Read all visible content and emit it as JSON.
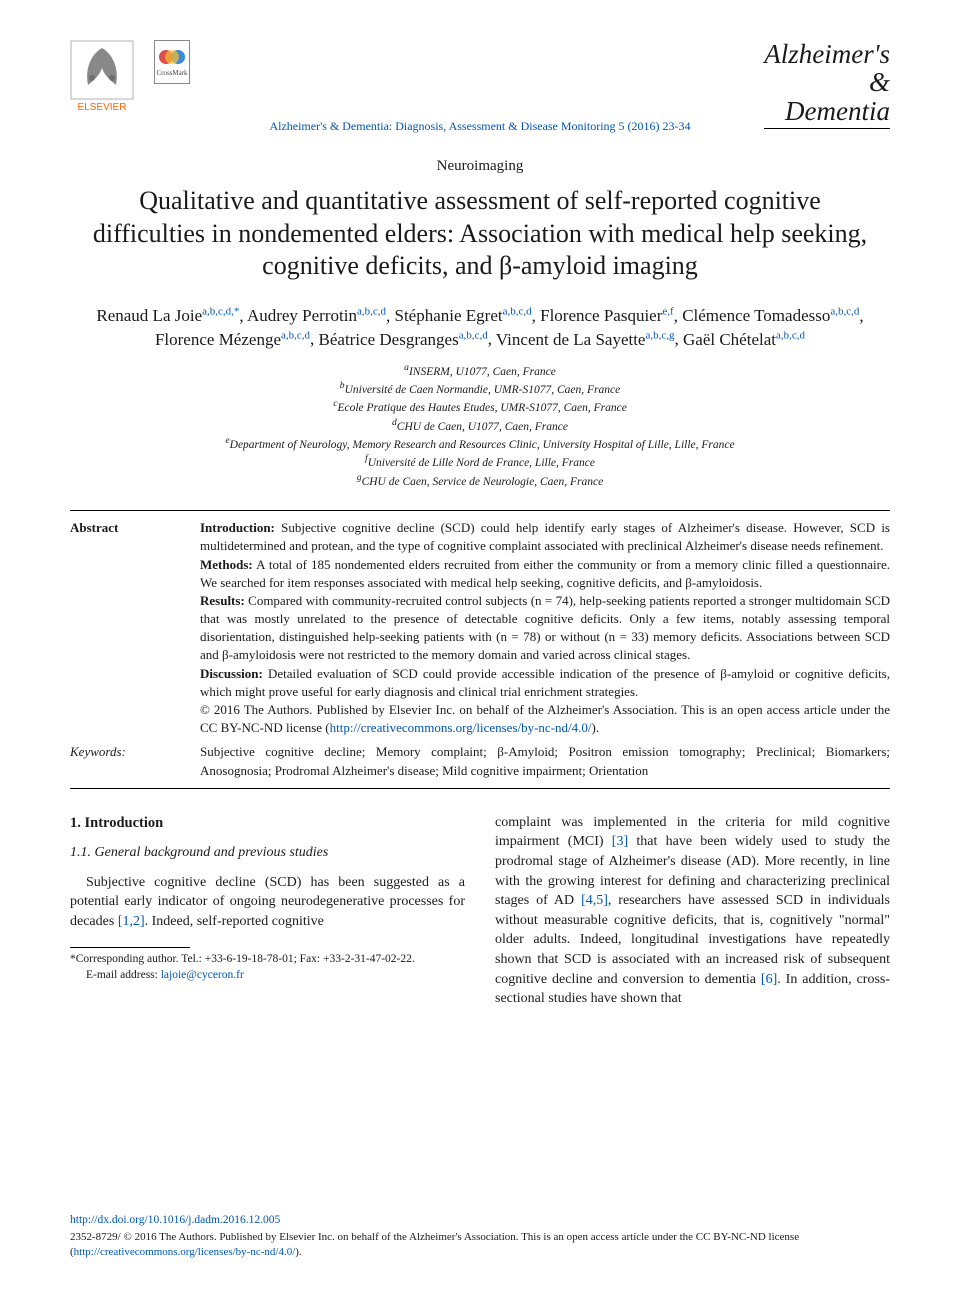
{
  "header": {
    "publisher_name": "ELSEVIER",
    "crossmark_label": "CrossMark",
    "journal_ref": "Alzheimer's & Dementia: Diagnosis, Assessment & Disease Monitoring 5 (2016) 23-34",
    "journal_logo_line1": "Alzheimer's",
    "journal_logo_line2": "&",
    "journal_logo_line3": "Dementia"
  },
  "article": {
    "section": "Neuroimaging",
    "title": "Qualitative and quantitative assessment of self-reported cognitive difficulties in nondemented elders: Association with medical help seeking, cognitive deficits, and β-amyloid imaging",
    "authors": [
      {
        "name": "Renaud La Joie",
        "aff": "a,b,c,d,",
        "corr": "*"
      },
      {
        "name": "Audrey Perrotin",
        "aff": "a,b,c,d"
      },
      {
        "name": "Stéphanie Egret",
        "aff": "a,b,c,d"
      },
      {
        "name": "Florence Pasquier",
        "aff": "e,f"
      },
      {
        "name": "Clémence Tomadesso",
        "aff": "a,b,c,d"
      },
      {
        "name": "Florence Mézenge",
        "aff": "a,b,c,d"
      },
      {
        "name": "Béatrice Desgranges",
        "aff": "a,b,c,d"
      },
      {
        "name": "Vincent de La Sayette",
        "aff": "a,b,c,g"
      },
      {
        "name": "Gaël Chételat",
        "aff": "a,b,c,d"
      }
    ],
    "affiliations": [
      {
        "sup": "a",
        "text": "INSERM, U1077, Caen, France"
      },
      {
        "sup": "b",
        "text": "Université de Caen Normandie, UMR-S1077, Caen, France"
      },
      {
        "sup": "c",
        "text": "Ecole Pratique des Hautes Etudes, UMR-S1077, Caen, France"
      },
      {
        "sup": "d",
        "text": "CHU de Caen, U1077, Caen, France"
      },
      {
        "sup": "e",
        "text": "Department of Neurology, Memory Research and Resources Clinic, University Hospital of Lille, Lille, France"
      },
      {
        "sup": "f",
        "text": "Université de Lille Nord de France, Lille, France"
      },
      {
        "sup": "g",
        "text": "CHU de Caen, Service de Neurologie, Caen, France"
      }
    ]
  },
  "abstract": {
    "label": "Abstract",
    "intro_label": "Introduction:",
    "intro": " Subjective cognitive decline (SCD) could help identify early stages of Alzheimer's disease. However, SCD is multidetermined and protean, and the type of cognitive complaint associated with preclinical Alzheimer's disease needs refinement.",
    "methods_label": "Methods:",
    "methods": " A total of 185 nondemented elders recruited from either the community or from a memory clinic filled a questionnaire. We searched for item responses associated with medical help seeking, cognitive deficits, and β-amyloidosis.",
    "results_label": "Results:",
    "results": " Compared with community-recruited control subjects (n = 74), help-seeking patients reported a stronger multidomain SCD that was mostly unrelated to the presence of detectable cognitive deficits. Only a few items, notably assessing temporal disorientation, distinguished help-seeking patients with (n = 78) or without (n = 33) memory deficits. Associations between SCD and β-amyloidosis were not restricted to the memory domain and varied across clinical stages.",
    "discussion_label": "Discussion:",
    "discussion": " Detailed evaluation of SCD could provide accessible indication of the presence of β-amyloid or cognitive deficits, which might prove useful for early diagnosis and clinical trial enrichment strategies.",
    "copyright": "© 2016 The Authors. Published by Elsevier Inc. on behalf of the Alzheimer's Association. This is an open access article under the CC BY-NC-ND license (",
    "license_url": "http://creativecommons.org/licenses/by-nc-nd/4.0/",
    "copyright_close": ")."
  },
  "keywords": {
    "label": "Keywords:",
    "text": "Subjective cognitive decline; Memory complaint; β-Amyloid; Positron emission tomography; Preclinical; Biomarkers; Anosognosia; Prodromal Alzheimer's disease; Mild cognitive impairment; Orientation"
  },
  "body": {
    "h1": "1. Introduction",
    "h2": "1.1. General background and previous studies",
    "col1_p": "Subjective cognitive decline (SCD) has been suggested as a potential early indicator of ongoing neurodegenerative processes for decades ",
    "col1_refs": "[1,2]",
    "col1_p_tail": ". Indeed, self-reported cognitive",
    "col2_p1": "complaint was implemented in the criteria for mild cognitive impairment (MCI) ",
    "col2_ref3": "[3]",
    "col2_p1b": " that have been widely used to study the prodromal stage of Alzheimer's disease (AD). More recently, in line with the growing interest for defining and characterizing preclinical stages of AD ",
    "col2_ref45": "[4,5]",
    "col2_p1c": ", researchers have assessed SCD in individuals without measurable cognitive deficits, that is, cognitively \"normal\" older adults. Indeed, longitudinal investigations have repeatedly shown that SCD is associated with an increased risk of subsequent cognitive decline and conversion to dementia ",
    "col2_ref6": "[6]",
    "col2_p1d": ". In addition, cross-sectional studies have shown that"
  },
  "footnotes": {
    "corr": "*Corresponding author. Tel.: +33-6-19-18-78-01; Fax: +33-2-31-47-02-22.",
    "email_label": "E-mail address: ",
    "email": "lajoie@cyceron.fr"
  },
  "footer": {
    "doi": "http://dx.doi.org/10.1016/j.dadm.2016.12.005",
    "issn_line": "2352-8729/ © 2016 The Authors. Published by Elsevier Inc. on behalf of the Alzheimer's Association. This is an open access article under the CC BY-NC-ND license (",
    "license_url": "http://creativecommons.org/licenses/by-nc-nd/4.0/",
    "close": ")."
  },
  "colors": {
    "link": "#0056b5",
    "text": "#1a1a1a",
    "elsevier_orange": "#ff6600"
  }
}
